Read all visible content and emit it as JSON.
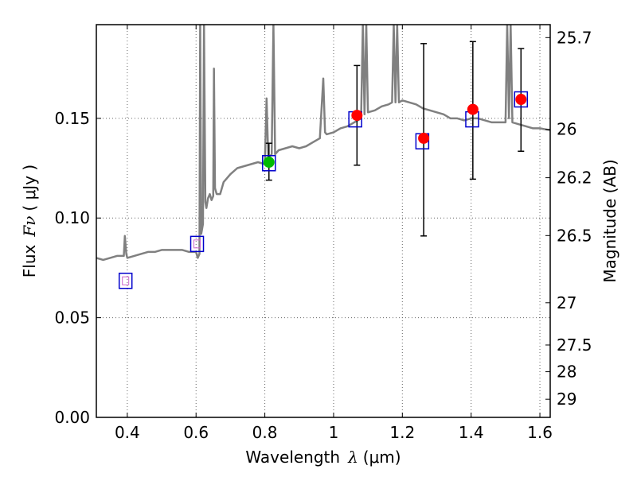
{
  "chart_data": {
    "type": "scatter",
    "xlabel_text": "Wavelength",
    "xlabel_symbol": "λ",
    "xlabel_unit": "(μm)",
    "ylabel_text": "Flux",
    "ylabel_symbol": "Fν",
    "ylabel_unit": "( μJy )",
    "y2label": "Magnitude (AB)",
    "xlim": [
      0.31,
      1.63
    ],
    "ylim": [
      0.0,
      0.197
    ],
    "x_ticks": [
      0.4,
      0.6,
      0.8,
      1.0,
      1.2,
      1.4,
      1.6
    ],
    "x_tick_labels": [
      "0.4",
      "0.6",
      "0.8",
      "1",
      "1.2",
      "1.4",
      "1.6"
    ],
    "y_ticks": [
      0.0,
      0.05,
      0.1,
      0.15
    ],
    "y_tick_labels": [
      "0.00",
      "0.05",
      "0.10",
      "0.15"
    ],
    "y2_ticks": [
      {
        "label": "25.7",
        "flux": 0.1905
      },
      {
        "label": "26",
        "flux": 0.1445
      },
      {
        "label": "26.2",
        "flux": 0.1202
      },
      {
        "label": "26.5",
        "flux": 0.0912
      },
      {
        "label": "27",
        "flux": 0.0575
      },
      {
        "label": "27.5",
        "flux": 0.0363
      },
      {
        "label": "28",
        "flux": 0.0229
      },
      {
        "label": "29",
        "flux": 0.0091
      }
    ],
    "grid": true,
    "colors": {
      "model_spectrum": "#808080",
      "model_box": "#0000cc",
      "measured_red": "#ff0000",
      "measured_green": "#00bb00",
      "errorbar": "#000000",
      "grid": "#666666",
      "band_marker": "#cc66cc"
    },
    "series": [
      {
        "name": "model spectrum",
        "kind": "line",
        "x": [
          0.31,
          0.33,
          0.35,
          0.37,
          0.39,
          0.393,
          0.397,
          0.4,
          0.42,
          0.44,
          0.46,
          0.48,
          0.5,
          0.52,
          0.54,
          0.56,
          0.58,
          0.6,
          0.605,
          0.61,
          0.612,
          0.615,
          0.62,
          0.623,
          0.627,
          0.63,
          0.635,
          0.64,
          0.645,
          0.65,
          0.652,
          0.655,
          0.66,
          0.67,
          0.68,
          0.69,
          0.7,
          0.72,
          0.74,
          0.76,
          0.78,
          0.8,
          0.805,
          0.81,
          0.815,
          0.82,
          0.825,
          0.83,
          0.835,
          0.84,
          0.86,
          0.88,
          0.9,
          0.92,
          0.94,
          0.96,
          0.97,
          0.975,
          0.98,
          1.0,
          1.02,
          1.04,
          1.06,
          1.08,
          1.085,
          1.09,
          1.095,
          1.1,
          1.12,
          1.14,
          1.16,
          1.17,
          1.175,
          1.18,
          1.185,
          1.19,
          1.2,
          1.22,
          1.24,
          1.26,
          1.28,
          1.3,
          1.32,
          1.34,
          1.36,
          1.38,
          1.4,
          1.42,
          1.44,
          1.46,
          1.48,
          1.5,
          1.505,
          1.51,
          1.515,
          1.52,
          1.54,
          1.56,
          1.58,
          1.6,
          1.63
        ],
        "y": [
          0.08,
          0.079,
          0.08,
          0.081,
          0.081,
          0.091,
          0.082,
          0.08,
          0.081,
          0.082,
          0.083,
          0.083,
          0.084,
          0.084,
          0.084,
          0.084,
          0.083,
          0.083,
          0.08,
          0.082,
          0.197,
          0.092,
          0.097,
          0.197,
          0.108,
          0.105,
          0.11,
          0.112,
          0.109,
          0.111,
          0.175,
          0.115,
          0.112,
          0.112,
          0.118,
          0.12,
          0.122,
          0.125,
          0.126,
          0.127,
          0.128,
          0.127,
          0.16,
          0.13,
          0.131,
          0.132,
          0.197,
          0.132,
          0.133,
          0.134,
          0.135,
          0.136,
          0.135,
          0.136,
          0.138,
          0.14,
          0.17,
          0.143,
          0.142,
          0.143,
          0.145,
          0.146,
          0.148,
          0.15,
          0.197,
          0.152,
          0.197,
          0.153,
          0.154,
          0.156,
          0.157,
          0.158,
          0.197,
          0.158,
          0.197,
          0.158,
          0.159,
          0.158,
          0.157,
          0.155,
          0.154,
          0.153,
          0.152,
          0.15,
          0.15,
          0.149,
          0.15,
          0.15,
          0.149,
          0.148,
          0.148,
          0.148,
          0.197,
          0.15,
          0.197,
          0.148,
          0.147,
          0.146,
          0.145,
          0.145,
          0.144
        ]
      },
      {
        "name": "model band flux",
        "kind": "square",
        "x": [
          0.395,
          0.603,
          0.812,
          1.063,
          1.258,
          1.403,
          1.545
        ],
        "y": [
          0.0685,
          0.087,
          0.1275,
          0.1495,
          0.1385,
          0.1495,
          0.1595
        ]
      },
      {
        "name": "observed flux",
        "kind": "circle",
        "points": [
          {
            "x": 0.812,
            "y": 0.128,
            "yerr_low": 0.119,
            "yerr_high": 0.1375,
            "color": "#00bb00"
          },
          {
            "x": 1.068,
            "y": 0.1515,
            "yerr_low": 0.1265,
            "yerr_high": 0.1765,
            "color": "#ff0000"
          },
          {
            "x": 1.262,
            "y": 0.14,
            "yerr_low": 0.091,
            "yerr_high": 0.1875,
            "color": "#ff0000"
          },
          {
            "x": 1.405,
            "y": 0.1545,
            "yerr_low": 0.1195,
            "yerr_high": 0.1885,
            "color": "#ff0000"
          },
          {
            "x": 1.545,
            "y": 0.1595,
            "yerr_low": 0.1335,
            "yerr_high": 0.185,
            "color": "#ff0000"
          }
        ]
      }
    ]
  }
}
